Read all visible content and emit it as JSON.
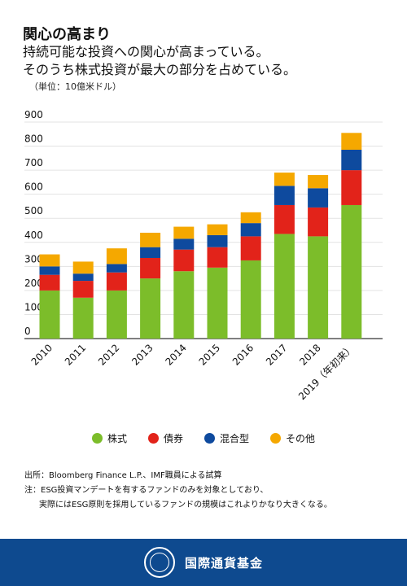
{
  "header": {
    "title": "関心の高まり",
    "subtitle_line1": "持続可能な投資への関心が高まっている。",
    "subtitle_line2": "そのうち株式投資が最大の部分を占めている。",
    "unit": "（単位：10億米ドル）"
  },
  "chart_data": {
    "type": "bar",
    "stacked": true,
    "categories": [
      "2010",
      "2011",
      "2012",
      "2013",
      "2014",
      "2015",
      "2016",
      "2017",
      "2018",
      "2019（年初来）"
    ],
    "series": [
      {
        "name": "株式",
        "color": "#7cbd2a",
        "values": [
          200,
          170,
          200,
          250,
          280,
          295,
          325,
          435,
          425,
          555
        ]
      },
      {
        "name": "債券",
        "color": "#e2231a",
        "values": [
          65,
          70,
          75,
          85,
          90,
          85,
          100,
          120,
          120,
          145
        ]
      },
      {
        "name": "混合型",
        "color": "#0e4a9e",
        "values": [
          35,
          30,
          35,
          45,
          45,
          50,
          55,
          80,
          80,
          85
        ]
      },
      {
        "name": "その他",
        "color": "#f5a800",
        "values": [
          50,
          50,
          65,
          60,
          50,
          45,
          45,
          55,
          55,
          70
        ]
      }
    ],
    "yticks": [
      "0",
      "100",
      "200",
      "300",
      "400",
      "500",
      "600",
      "700",
      "800",
      "900"
    ],
    "ylim": [
      0,
      900
    ],
    "grid": true,
    "legend_position": "bottom"
  },
  "notes": {
    "source": "出所：Bloomberg Finance L.P.、IMF職員による試算",
    "note_line1": "注：ESG投資マンデートを有するファンドのみを対象としており、",
    "note_line2": "実際にはESG原則を採用しているファンドの規模はこれよりかなり大きくなる。"
  },
  "footer": {
    "org_name": "国際通貨基金",
    "seal_text": "INTERNATIONAL MONETARY FUND"
  }
}
